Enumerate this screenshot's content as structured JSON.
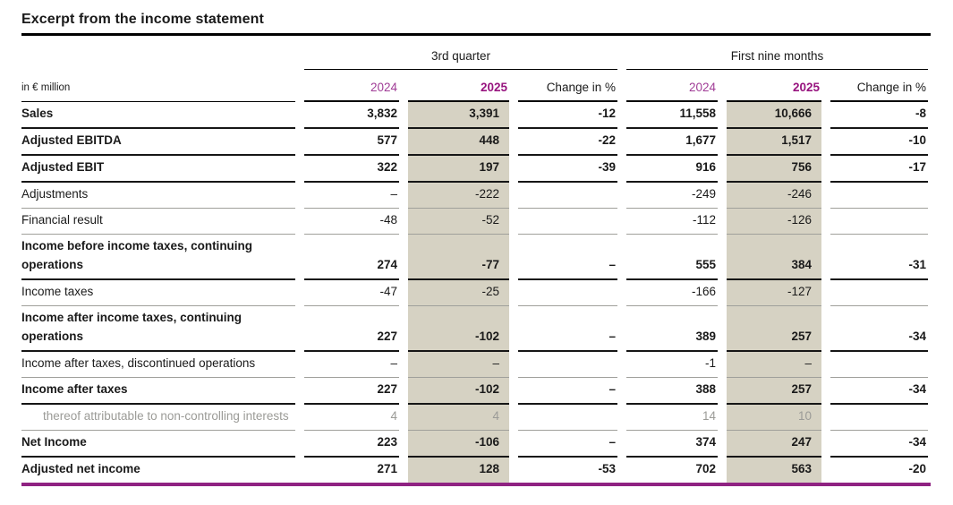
{
  "title": "Excerpt from the income statement",
  "table": {
    "unit_label": "in € million",
    "groups": [
      {
        "label": "3rd quarter"
      },
      {
        "label": "First nine months"
      }
    ],
    "columns": [
      "2024",
      "2025",
      "Change in %",
      "2024",
      "2025",
      "Change in %"
    ],
    "rows": [
      {
        "label": "Sales",
        "style": "bold",
        "values": [
          "3,832",
          "3,391",
          "-12",
          "11,558",
          "10,666",
          "-8"
        ]
      },
      {
        "label": "Adjusted EBITDA",
        "style": "bold",
        "values": [
          "577",
          "448",
          "-22",
          "1,677",
          "1,517",
          "-10"
        ]
      },
      {
        "label": "Adjusted EBIT",
        "style": "bold",
        "values": [
          "322",
          "197",
          "-39",
          "916",
          "756",
          "-17"
        ]
      },
      {
        "label": "Adjustments",
        "style": "regular",
        "values": [
          "–",
          "-222",
          "",
          "-249",
          "-246",
          ""
        ]
      },
      {
        "label": "Financial result",
        "style": "regular",
        "values": [
          "-48",
          "-52",
          "",
          "-112",
          "-126",
          ""
        ]
      },
      {
        "label": "Income before income taxes, continuing operations",
        "style": "bold",
        "values": [
          "274",
          "-77",
          "–",
          "555",
          "384",
          "-31"
        ]
      },
      {
        "label": "Income taxes",
        "style": "regular",
        "values": [
          "-47",
          "-25",
          "",
          "-166",
          "-127",
          ""
        ]
      },
      {
        "label": "Income after income taxes, continuing operations",
        "style": "bold",
        "values": [
          "227",
          "-102",
          "–",
          "389",
          "257",
          "-34"
        ]
      },
      {
        "label": "Income after taxes, discontinued operations",
        "style": "regular",
        "values": [
          "–",
          "–",
          "",
          "-1",
          "–",
          ""
        ]
      },
      {
        "label": "Income after taxes",
        "style": "bold",
        "values": [
          "227",
          "-102",
          "–",
          "388",
          "257",
          "-34"
        ]
      },
      {
        "label": "thereof attributable to non-controlling interests",
        "style": "muted",
        "values": [
          "4",
          "4",
          "",
          "14",
          "10",
          ""
        ]
      },
      {
        "label": "Net Income",
        "style": "bold",
        "values": [
          "223",
          "-106",
          "–",
          "374",
          "247",
          "-34"
        ]
      },
      {
        "label": "Adjusted net income",
        "style": "bold",
        "values": [
          "271",
          "128",
          "-53",
          "702",
          "563",
          "-20"
        ]
      }
    ],
    "colors": {
      "accent_purple": "#8f2282",
      "year_header_2024": "#a03c96",
      "year_header_2025": "#97137e",
      "highlight_beige": "#d6d2c3",
      "muted_text": "#9b9b97"
    }
  }
}
